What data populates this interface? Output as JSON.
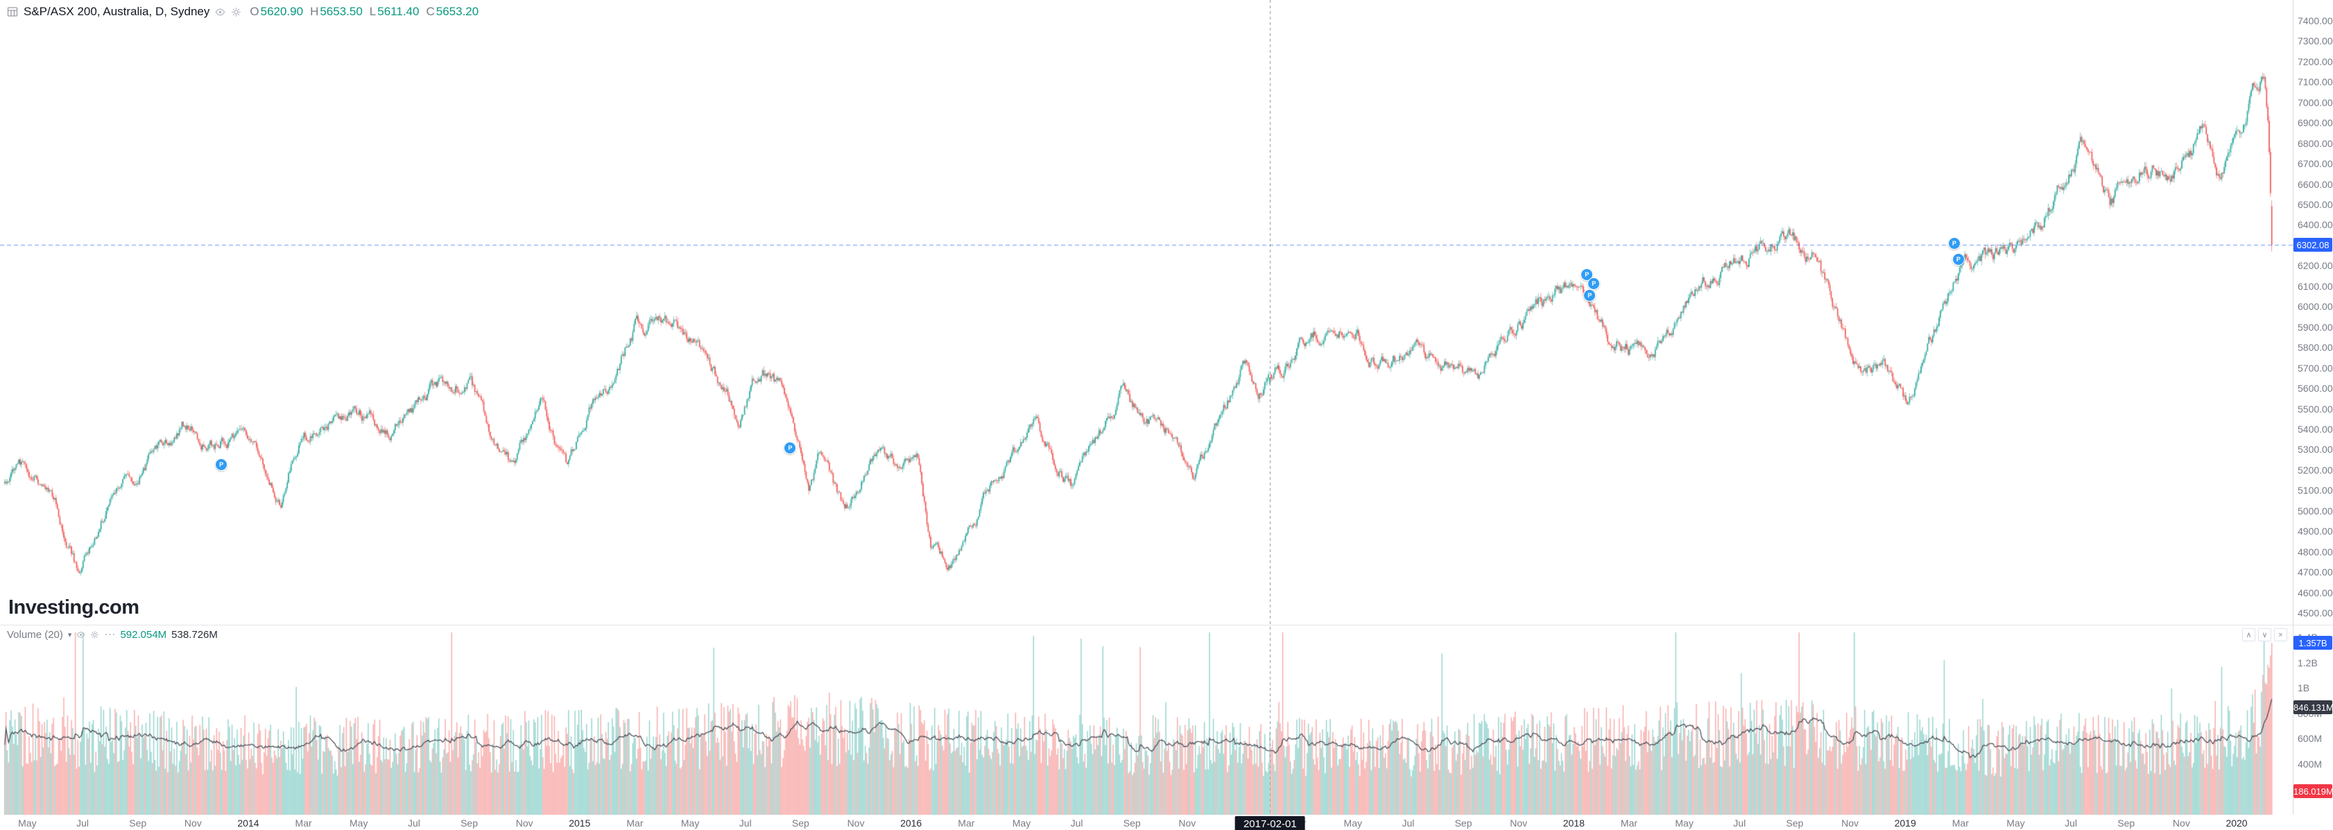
{
  "header": {
    "symbol_title": "S&P/ASX 200, Australia, D, Sydney",
    "ohlc": [
      {
        "label": "O",
        "value": "5620.90"
      },
      {
        "label": "H",
        "value": "5653.50"
      },
      {
        "label": "L",
        "value": "5611.40"
      },
      {
        "label": "C",
        "value": "5653.20"
      }
    ]
  },
  "watermark": {
    "brand": "Investing",
    "tld": ".com"
  },
  "icons": {
    "chevron_down": "▾",
    "collapse_up": "∧",
    "collapse_down": "∨",
    "close": "×",
    "more": "⋯"
  },
  "price_pane": {
    "last_price_badge": "6302.08",
    "axis_labels": [
      {
        "text": "7400.00",
        "value": 7400
      },
      {
        "text": "7300.00",
        "value": 7300
      },
      {
        "text": "7200.00",
        "value": 7200
      },
      {
        "text": "7100.00",
        "value": 7100
      },
      {
        "text": "7000.00",
        "value": 7000
      },
      {
        "text": "6900.00",
        "value": 6900
      },
      {
        "text": "6800.00",
        "value": 6800
      },
      {
        "text": "6700.00",
        "value": 6700
      },
      {
        "text": "6600.00",
        "value": 6600
      },
      {
        "text": "6500.00",
        "value": 6500
      },
      {
        "text": "6400.00",
        "value": 6400
      },
      {
        "text": "6300.00",
        "value": 6300
      },
      {
        "text": "6200.00",
        "value": 6200
      },
      {
        "text": "6100.00",
        "value": 6100
      },
      {
        "text": "6000.00",
        "value": 6000
      },
      {
        "text": "5900.00",
        "value": 5900
      },
      {
        "text": "5800.00",
        "value": 5800
      },
      {
        "text": "5700.00",
        "value": 5700
      },
      {
        "text": "5600.00",
        "value": 5600
      },
      {
        "text": "5500.00",
        "value": 5500
      },
      {
        "text": "5400.00",
        "value": 5400
      },
      {
        "text": "5300.00",
        "value": 5300
      },
      {
        "text": "5200.00",
        "value": 5200
      },
      {
        "text": "5100.00",
        "value": 5100
      },
      {
        "text": "5000.00",
        "value": 5000
      },
      {
        "text": "4900.00",
        "value": 4900
      },
      {
        "text": "4800.00",
        "value": 4800
      },
      {
        "text": "4700.00",
        "value": 4700
      },
      {
        "text": "4600.00",
        "value": 4600
      },
      {
        "text": "4500.00",
        "value": 4500
      }
    ]
  },
  "volume_pane": {
    "legend": {
      "title": "Volume",
      "period": "(20)",
      "value": "592.054M",
      "ma_value": "538.726M"
    },
    "axis_labels": [
      {
        "text": "1.4B",
        "value": 1400
      },
      {
        "text": "1.2B",
        "value": 1200
      },
      {
        "text": "1B",
        "value": 1000
      },
      {
        "text": "800M",
        "value": 800
      },
      {
        "text": "600M",
        "value": 600
      },
      {
        "text": "400M",
        "value": 400
      },
      {
        "text": "200M",
        "value": 200
      }
    ],
    "badges": [
      {
        "text": "1.357B",
        "value": 1357,
        "color": "#2962ff",
        "name": "volume-last-badge"
      },
      {
        "text": "846.131M",
        "value": 846,
        "color": "#363a45",
        "name": "volume-ma-badge"
      },
      {
        "text": "186.019M",
        "value": 186,
        "color": "#f23645",
        "name": "volume-session-badge"
      }
    ]
  },
  "time_axis": {
    "crosshair_label": "2017-02-01",
    "crosshair_month": 46,
    "labels": [
      {
        "text": "May",
        "m": 1
      },
      {
        "text": "Jul",
        "m": 3
      },
      {
        "text": "Sep",
        "m": 5
      },
      {
        "text": "Nov",
        "m": 7
      },
      {
        "text": "2014",
        "m": 9,
        "year": true
      },
      {
        "text": "Mar",
        "m": 11
      },
      {
        "text": "May",
        "m": 13
      },
      {
        "text": "Jul",
        "m": 15
      },
      {
        "text": "Sep",
        "m": 17
      },
      {
        "text": "Nov",
        "m": 19
      },
      {
        "text": "2015",
        "m": 21,
        "year": true
      },
      {
        "text": "Mar",
        "m": 23
      },
      {
        "text": "May",
        "m": 25
      },
      {
        "text": "Jul",
        "m": 27
      },
      {
        "text": "Sep",
        "m": 29
      },
      {
        "text": "Nov",
        "m": 31
      },
      {
        "text": "2016",
        "m": 33,
        "year": true
      },
      {
        "text": "Mar",
        "m": 35
      },
      {
        "text": "May",
        "m": 37
      },
      {
        "text": "Jul",
        "m": 39
      },
      {
        "text": "Sep",
        "m": 41
      },
      {
        "text": "Nov",
        "m": 43
      },
      {
        "text": "Mar",
        "m": 47
      },
      {
        "text": "May",
        "m": 49
      },
      {
        "text": "Jul",
        "m": 51
      },
      {
        "text": "Sep",
        "m": 53
      },
      {
        "text": "Nov",
        "m": 55
      },
      {
        "text": "2018",
        "m": 57,
        "year": true
      },
      {
        "text": "Mar",
        "m": 59
      },
      {
        "text": "May",
        "m": 61
      },
      {
        "text": "Jul",
        "m": 63
      },
      {
        "text": "Sep",
        "m": 65
      },
      {
        "text": "Nov",
        "m": 67
      },
      {
        "text": "2019",
        "m": 69,
        "year": true
      },
      {
        "text": "Mar",
        "m": 71
      },
      {
        "text": "May",
        "m": 73
      },
      {
        "text": "Jul",
        "m": 75
      },
      {
        "text": "Sep",
        "m": 77
      },
      {
        "text": "Nov",
        "m": 79
      },
      {
        "text": "2020",
        "m": 81,
        "year": true
      }
    ]
  },
  "markers": [
    {
      "label": "P",
      "m": 8.0,
      "price": 5230
    },
    {
      "label": "P",
      "m": 28.6,
      "price": 5310
    },
    {
      "label": "P",
      "m": 57.45,
      "price": 6160
    },
    {
      "label": "P",
      "m": 57.7,
      "price": 6115
    },
    {
      "label": "P",
      "m": 57.55,
      "price": 6060
    },
    {
      "label": "P",
      "m": 70.75,
      "price": 6315
    },
    {
      "label": "P",
      "m": 70.9,
      "price": 6235
    }
  ],
  "colors": {
    "up": "#26a69a",
    "down": "#ef5350",
    "vol_up": "rgba(38,166,154,0.5)",
    "vol_down": "rgba(239,83,80,0.5)",
    "ma_line": "#434651",
    "accent": "#2962ff"
  },
  "chart_data": {
    "type": "candlestick",
    "symbol": "S&P/ASX 200",
    "exchange": "Sydney",
    "interval": "D",
    "visible_range": {
      "from": "2013-04",
      "to": "2020-03"
    },
    "price_axis_range": [
      4500,
      7400
    ],
    "volume_axis_range_millions": [
      0,
      1500
    ],
    "last_close": 6302.08,
    "hovered_bar": {
      "date": "2017-02-01",
      "open": 5620.9,
      "high": 5653.5,
      "low": 5611.4,
      "close": 5653.2,
      "volume": "592.054M",
      "volume_ma20": "538.726M"
    },
    "price_anchors": [
      [
        0,
        5120
      ],
      [
        0.7,
        5190
      ],
      [
        1.8,
        5140
      ],
      [
        2.9,
        4680
      ],
      [
        4,
        5060
      ],
      [
        5,
        5170
      ],
      [
        6.6,
        5420
      ],
      [
        7.4,
        5330
      ],
      [
        8.5,
        5370
      ],
      [
        9.3,
        5290
      ],
      [
        10.2,
        5080
      ],
      [
        11,
        5400
      ],
      [
        12,
        5420
      ],
      [
        13,
        5480
      ],
      [
        14.2,
        5390
      ],
      [
        15.6,
        5590
      ],
      [
        17,
        5630
      ],
      [
        17.9,
        5330
      ],
      [
        18.6,
        5200
      ],
      [
        19.6,
        5520
      ],
      [
        20.5,
        5210
      ],
      [
        21.4,
        5480
      ],
      [
        21.9,
        5560
      ],
      [
        23,
        5900
      ],
      [
        23.9,
        5950
      ],
      [
        24.6,
        5860
      ],
      [
        25.5,
        5790
      ],
      [
        26.8,
        5460
      ],
      [
        27.6,
        5690
      ],
      [
        28.5,
        5550
      ],
      [
        29.3,
        5110
      ],
      [
        29.7,
        5270
      ],
      [
        30.6,
        4960
      ],
      [
        31.8,
        5320
      ],
      [
        32.6,
        5190
      ],
      [
        33.2,
        5270
      ],
      [
        33.7,
        4820
      ],
      [
        34.4,
        4730
      ],
      [
        35,
        4900
      ],
      [
        36,
        5160
      ],
      [
        37.5,
        5390
      ],
      [
        38.8,
        5130
      ],
      [
        39.5,
        5300
      ],
      [
        40.6,
        5570
      ],
      [
        41.5,
        5440
      ],
      [
        42.5,
        5400
      ],
      [
        43.2,
        5190
      ],
      [
        44.4,
        5500
      ],
      [
        45,
        5710
      ],
      [
        45.6,
        5620
      ],
      [
        46,
        5650
      ],
      [
        47.6,
        5880
      ],
      [
        49,
        5930
      ],
      [
        49.9,
        5720
      ],
      [
        51,
        5750
      ],
      [
        52.5,
        5720
      ],
      [
        53.6,
        5660
      ],
      [
        55,
        5930
      ],
      [
        56.3,
        6060
      ],
      [
        57.2,
        6100
      ],
      [
        58.3,
        5820
      ],
      [
        59.9,
        5770
      ],
      [
        61.6,
        6100
      ],
      [
        63.3,
        6260
      ],
      [
        64.8,
        6340
      ],
      [
        65.8,
        6230
      ],
      [
        67.3,
        5680
      ],
      [
        68.3,
        5690
      ],
      [
        69.1,
        5510
      ],
      [
        69.6,
        5720
      ],
      [
        71,
        6180
      ],
      [
        72.6,
        6280
      ],
      [
        74,
        6420
      ],
      [
        75.5,
        6820
      ],
      [
        76.4,
        6480
      ],
      [
        77.6,
        6680
      ],
      [
        78.6,
        6660
      ],
      [
        79.8,
        6860
      ],
      [
        80.4,
        6640
      ],
      [
        81,
        6850
      ],
      [
        81.8,
        7120
      ],
      [
        82,
        7170
      ],
      [
        82.15,
        6850
      ],
      [
        82.3,
        6302
      ]
    ],
    "volume_anchors": [
      [
        0,
        640
      ],
      [
        5,
        600
      ],
      [
        9,
        560
      ],
      [
        15,
        560
      ],
      [
        21,
        600
      ],
      [
        25,
        620
      ],
      [
        29.5,
        700
      ],
      [
        33,
        640
      ],
      [
        36,
        580
      ],
      [
        45,
        560
      ],
      [
        50,
        540
      ],
      [
        57,
        600
      ],
      [
        60,
        640
      ],
      [
        66,
        660
      ],
      [
        69,
        580
      ],
      [
        72,
        540
      ],
      [
        75,
        580
      ],
      [
        78,
        560
      ],
      [
        81,
        620
      ],
      [
        81.9,
        750
      ],
      [
        82.3,
        1250
      ]
    ]
  }
}
